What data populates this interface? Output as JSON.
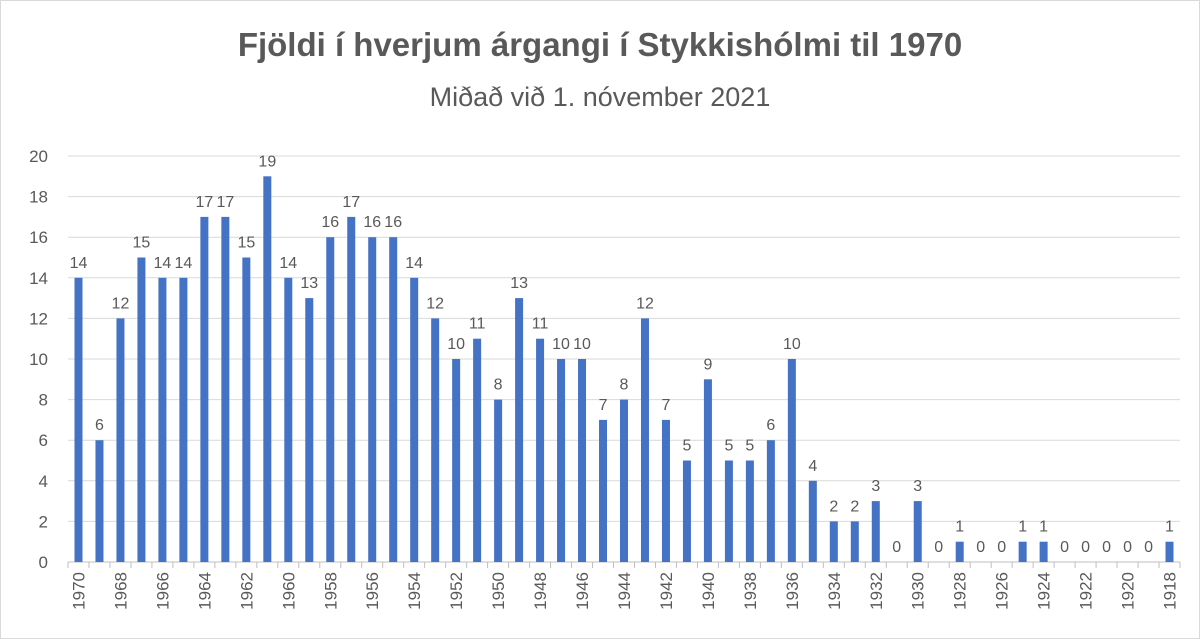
{
  "chart_data": {
    "type": "bar",
    "title": "Fjöldi í hverjum árgangi í Stykkishólmi til 1970",
    "subtitle": "Miðað við 1. nóvember 2021",
    "categories": [
      "1970",
      null,
      "1968",
      null,
      "1966",
      null,
      "1964",
      null,
      "1962",
      null,
      "1960",
      null,
      "1958",
      null,
      "1956",
      null,
      "1954",
      null,
      "1952",
      null,
      "1950",
      null,
      "1948",
      null,
      "1946",
      null,
      "1944",
      null,
      "1942",
      null,
      "1940",
      null,
      "1938",
      null,
      "1936",
      null,
      "1934",
      null,
      "1932",
      null,
      "1930",
      null,
      "1928",
      null,
      "1926",
      null,
      "1924",
      null,
      "1922",
      null,
      "1920",
      null,
      "1918"
    ],
    "values": [
      14,
      6,
      12,
      15,
      14,
      14,
      17,
      17,
      15,
      19,
      14,
      13,
      16,
      17,
      16,
      16,
      14,
      12,
      10,
      11,
      8,
      13,
      11,
      10,
      10,
      7,
      8,
      12,
      7,
      5,
      9,
      5,
      5,
      6,
      10,
      4,
      2,
      2,
      3,
      0,
      3,
      0,
      1,
      0,
      0,
      1,
      1,
      0,
      0,
      0,
      0,
      0,
      1
    ],
    "color": "#4472c4",
    "ylim": [
      0,
      20
    ],
    "yticks": [
      0,
      2,
      4,
      6,
      8,
      10,
      12,
      14,
      16,
      18,
      20
    ],
    "grid": true
  }
}
